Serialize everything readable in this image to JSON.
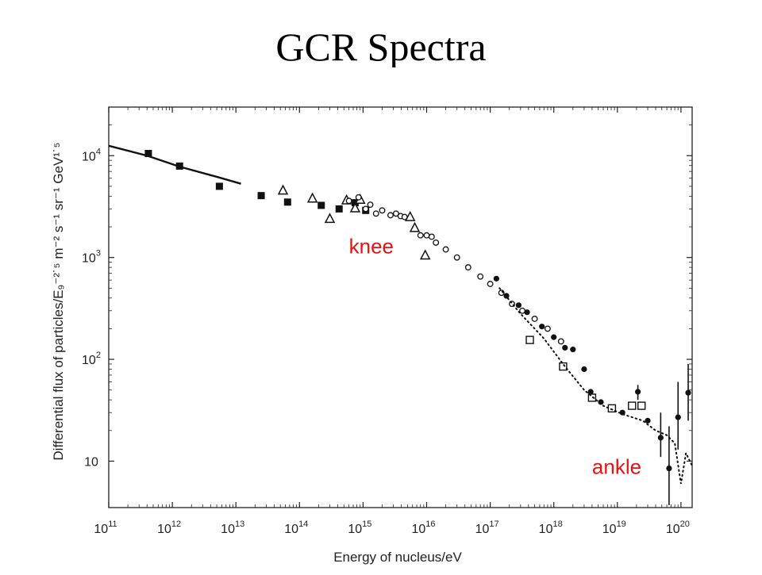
{
  "slide": {
    "title": "GCR Spectra"
  },
  "chart_data": {
    "type": "scatter",
    "xscale": "log",
    "yscale": "log",
    "xlim": [
      100000000000.0,
      1.5e+20
    ],
    "ylim": [
      3.5,
      30000
    ],
    "xlabel": "Energy of nucleus/eV",
    "ylabel": "Differential flux of particles/E₉⁻²˙⁵ m⁻² s⁻¹ sr⁻¹ GeV¹˙⁵",
    "x_ticks": [
      {
        "value": 100000000000.0,
        "base": "10",
        "exp": "11"
      },
      {
        "value": 1000000000000.0,
        "base": "10",
        "exp": "12"
      },
      {
        "value": 10000000000000.0,
        "base": "10",
        "exp": "13"
      },
      {
        "value": 100000000000000.0,
        "base": "10",
        "exp": "14"
      },
      {
        "value": 1000000000000000.0,
        "base": "10",
        "exp": "15"
      },
      {
        "value": 1e+16,
        "base": "10",
        "exp": "16"
      },
      {
        "value": 1e+17,
        "base": "10",
        "exp": "17"
      },
      {
        "value": 1e+18,
        "base": "10",
        "exp": "18"
      },
      {
        "value": 1e+19,
        "base": "10",
        "exp": "19"
      },
      {
        "value": 1e+20,
        "base": "10",
        "exp": "20"
      }
    ],
    "y_ticks": [
      {
        "value": 10,
        "base": "10",
        "exp": ""
      },
      {
        "value": 100,
        "base": "10",
        "exp": "2"
      },
      {
        "value": 1000,
        "base": "10",
        "exp": "3"
      },
      {
        "value": 10000,
        "base": "10",
        "exp": "4"
      }
    ],
    "annotations": [
      {
        "text": "knee",
        "x": 600000000000000.0,
        "y": 1100,
        "color": "#ee1111"
      },
      {
        "text": "ankle",
        "x": 4e+18,
        "y": 7.5,
        "color": "#ee1111"
      }
    ],
    "series": [
      {
        "marker": "line-solid",
        "x": [
          100000000000.0,
          400000000000.0,
          1300000000000.0,
          5000000000000.0,
          12000000000000.0
        ],
        "y": [
          12500,
          10000,
          7800,
          6200,
          5300
        ]
      },
      {
        "marker": "filled-square",
        "x": [
          420000000000.0,
          1300000000000.0,
          5500000000000.0,
          25000000000000.0,
          65000000000000.0,
          220000000000000.0,
          420000000000000.0,
          750000000000000.0,
          1100000000000000.0
        ],
        "y": [
          10500,
          7900,
          5000,
          4050,
          3500,
          3250,
          3000,
          3450,
          2900
        ]
      },
      {
        "marker": "open-triangle",
        "x": [
          55000000000000.0,
          160000000000000.0,
          300000000000000.0,
          550000000000000.0,
          750000000000000.0,
          900000000000000.0,
          5500000000000000.0,
          6500000000000000.0,
          9500000000000000.0
        ],
        "y": [
          4550,
          3800,
          2400,
          3650,
          3050,
          3700,
          2500,
          1950,
          1050
        ]
      },
      {
        "marker": "open-circle",
        "x": [
          600000000000000.0,
          850000000000000.0,
          1100000000000000.0,
          1300000000000000.0,
          1600000000000000.0,
          2000000000000000.0,
          2700000000000000.0,
          3300000000000000.0,
          3900000000000000.0,
          4500000000000000.0,
          8000000000000000.0,
          1e+16,
          1.2e+16,
          1.4e+16,
          2e+16,
          3e+16,
          4.5e+16,
          7e+16,
          1e+17,
          1.5e+17,
          2.2e+17,
          3.2e+17,
          5e+17,
          8e+17,
          1.3e+18
        ],
        "y": [
          3600,
          3900,
          3000,
          3300,
          2700,
          2900,
          2600,
          2700,
          2550,
          2500,
          1650,
          1650,
          1600,
          1400,
          1200,
          1000,
          800,
          650,
          550,
          450,
          350,
          300,
          250,
          200,
          150
        ]
      },
      {
        "marker": "open-square",
        "x": [
          4.2e+17,
          1.4e+18,
          4e+18,
          8.2e+18,
          1.7e+19,
          2.4e+19
        ],
        "y": [
          155,
          85,
          42,
          33,
          35,
          35
        ]
      },
      {
        "marker": "filled-circle",
        "x": [
          1.25e+17,
          1.8e+17,
          2.8e+17,
          3.8e+17,
          6.5e+17,
          1e+18,
          1.5e+18,
          2e+18,
          3e+18,
          3.8e+18,
          5.5e+18,
          1.2e+19,
          2.1e+19,
          3e+19,
          4.8e+19,
          6.5e+19,
          9e+19,
          1.3e+20
        ],
        "y": [
          620,
          420,
          340,
          290,
          210,
          165,
          130,
          125,
          80,
          48,
          38,
          30,
          48,
          25,
          17,
          8.5,
          27,
          47
        ]
      },
      {
        "marker": "dotted-line",
        "x": [
          1.4e+17,
          3e+17,
          7e+17,
          1.5e+18,
          3e+18,
          6e+18,
          1.2e+19,
          2.5e+19,
          4e+19,
          6e+19,
          8e+19,
          1e+20,
          1.2e+20,
          1.5e+20
        ],
        "y": [
          500,
          280,
          160,
          85,
          50,
          35,
          29,
          25,
          20,
          18,
          15,
          6,
          12,
          9
        ]
      }
    ],
    "error_bars": [
      {
        "x": 2.1e+19,
        "low": 40,
        "high": 56
      },
      {
        "x": 4.8e+19,
        "low": 11,
        "high": 30
      },
      {
        "x": 6.5e+19,
        "low": 3.7,
        "high": 22
      },
      {
        "x": 9e+19,
        "low": 13,
        "high": 60
      },
      {
        "x": 1.3e+20,
        "low": 25,
        "high": 90
      }
    ],
    "colors": {
      "axis": "#222222",
      "marker": "#111111",
      "annotation": "#ee1111"
    }
  }
}
